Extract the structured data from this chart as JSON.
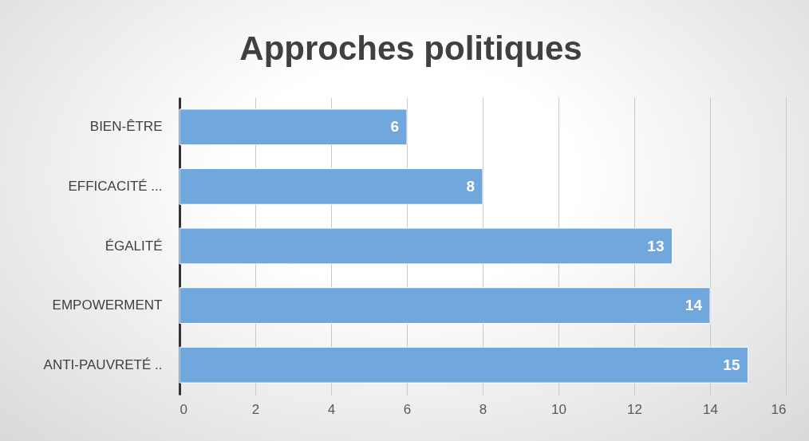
{
  "chart_data": {
    "type": "bar",
    "orientation": "horizontal",
    "title": "Approches politiques",
    "categories": [
      "BIEN-ÊTRE",
      "EFFICACITÉ ...",
      "ÉGALITÉ",
      "EMPOWERMENT",
      "ANTI-PAUVRETÉ .."
    ],
    "values": [
      6,
      8,
      13,
      14,
      15
    ],
    "color": "#70a7dc",
    "xlim": [
      0,
      16
    ],
    "xticks": [
      0,
      2,
      4,
      6,
      8,
      10,
      12,
      14,
      16
    ],
    "grid": "x",
    "data_labels": true
  }
}
